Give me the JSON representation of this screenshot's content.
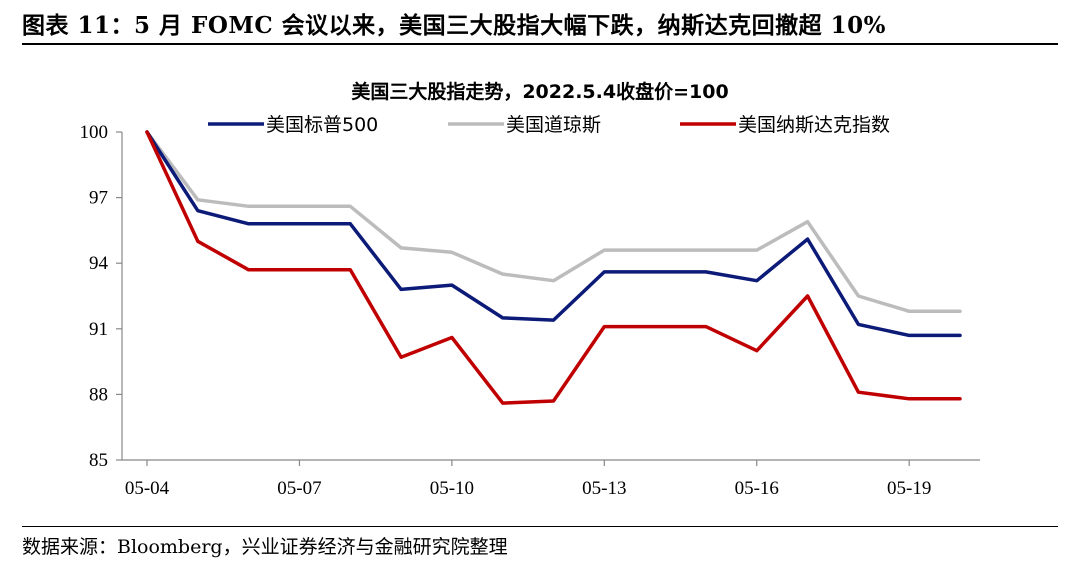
{
  "figure": {
    "title": "图表 11：5 月 FOMC 会议以来，美国三大股指大幅下跌，纳斯达克回撤超 10%",
    "source": "数据来源：Bloomberg，兴业证券经济与金融研究院整理"
  },
  "chart_data": {
    "type": "line",
    "title": "美国三大股指走势，2022.5.4收盘价=100",
    "x": [
      "05-04",
      "05-05",
      "05-06",
      "05-07",
      "05-08",
      "05-09",
      "05-10",
      "05-11",
      "05-12",
      "05-13",
      "05-14",
      "05-15",
      "05-16",
      "05-17",
      "05-18",
      "05-19",
      "05-20"
    ],
    "x_tick_labels": [
      "05-04",
      "05-07",
      "05-10",
      "05-13",
      "05-16",
      "05-19"
    ],
    "ylim": [
      85,
      100
    ],
    "y_ticks": [
      85,
      88,
      91,
      94,
      97,
      100
    ],
    "grid": false,
    "legend_position": "top",
    "series": [
      {
        "name": "美国标普500",
        "color": "#0c1a78",
        "values": [
          100,
          96.4,
          95.8,
          95.8,
          95.8,
          92.8,
          93.0,
          91.5,
          91.4,
          93.6,
          93.6,
          93.6,
          93.2,
          95.1,
          91.2,
          90.7,
          90.7
        ]
      },
      {
        "name": "美国道琼斯",
        "color": "#bcbcbc",
        "values": [
          100,
          96.9,
          96.6,
          96.6,
          96.6,
          94.7,
          94.5,
          93.5,
          93.2,
          94.6,
          94.6,
          94.6,
          94.6,
          95.9,
          92.5,
          91.8,
          91.8
        ]
      },
      {
        "name": "美国纳斯达克指数",
        "color": "#c00000",
        "values": [
          100,
          95.0,
          93.7,
          93.7,
          93.7,
          89.7,
          90.6,
          87.6,
          87.7,
          91.1,
          91.1,
          91.1,
          90.0,
          92.5,
          88.1,
          87.8,
          87.8
        ]
      }
    ]
  }
}
